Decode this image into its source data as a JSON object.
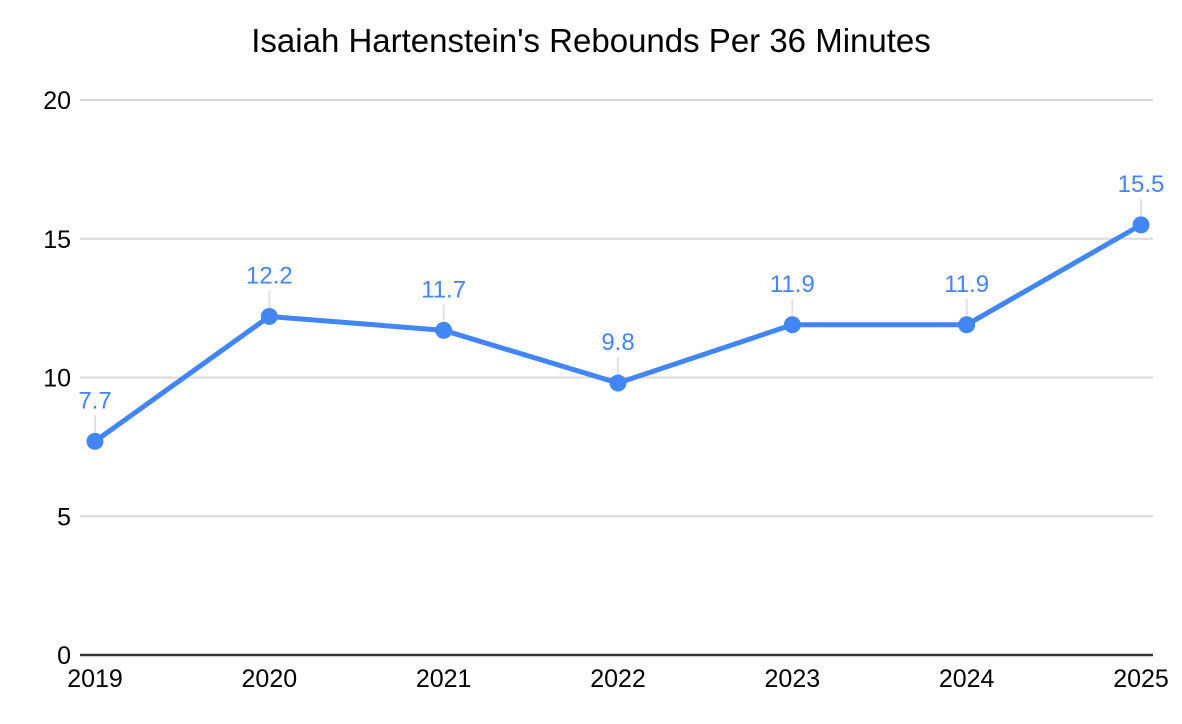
{
  "page": {
    "background": "#ffffff"
  },
  "chart_data": {
    "type": "line",
    "title": "Isaiah Hartenstein's Rebounds Per 36 Minutes",
    "categories": [
      "2019",
      "2020",
      "2021",
      "2022",
      "2023",
      "2024",
      "2025"
    ],
    "series": [
      {
        "name": "Rebounds Per 36 Minutes",
        "values": [
          7.7,
          12.2,
          11.7,
          9.8,
          11.9,
          11.9,
          15.5
        ]
      }
    ],
    "data_labels": [
      "7.7",
      "12.2",
      "11.7",
      "9.8",
      "11.9",
      "11.9",
      "15.5"
    ],
    "xlabel": "",
    "ylabel": "",
    "ylim": [
      0,
      20
    ],
    "yticks": [
      0,
      5,
      10,
      15,
      20
    ],
    "grid": "horizontal",
    "legend": "none",
    "colors": {
      "series": "#4285f4",
      "data_label": "#4285f4",
      "gridline": "#d9d9d9",
      "axis_line": "#333333",
      "tick_label": "#000000",
      "title": "#000000",
      "leader_line": "#e3e3e3",
      "background": "#ffffff"
    }
  }
}
